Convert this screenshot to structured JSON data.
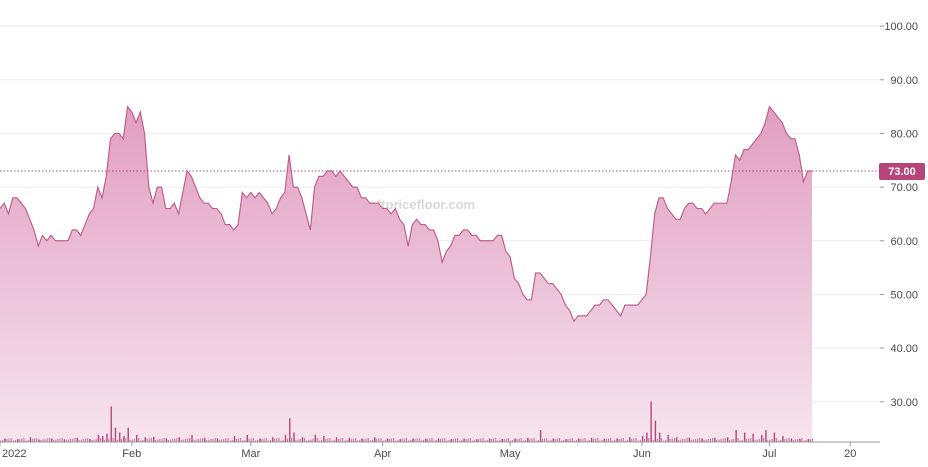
{
  "chart_data": {
    "type": "area",
    "watermark": "nftpricefloor.com",
    "colors": {
      "line": "#c0608e",
      "fill_top": "#e19ec0",
      "fill_bottom": "#f6e4ee",
      "volume": "#b8457a",
      "price_line": "#b04b7a",
      "price_tag_bg": "#b8457a",
      "grid": "#ececec"
    },
    "y_axis": {
      "position": "right",
      "range": [
        22.5,
        103
      ],
      "ticks": [
        30,
        40,
        50,
        60,
        70,
        80,
        90,
        100
      ],
      "tick_labels": [
        "30.00",
        "40.00",
        "50.00",
        "60.00",
        "70.00",
        "80.00",
        "90.00",
        "100.00"
      ]
    },
    "x_axis": {
      "range": [
        0,
        207
      ],
      "ticks": [
        {
          "x": 0,
          "label": "2022"
        },
        {
          "x": 31,
          "label": "Feb"
        },
        {
          "x": 59,
          "label": "Mar"
        },
        {
          "x": 90,
          "label": "Apr"
        },
        {
          "x": 120,
          "label": "May"
        },
        {
          "x": 151,
          "label": "Jun"
        },
        {
          "x": 181,
          "label": "Jul"
        },
        {
          "x": 200,
          "label": "20"
        }
      ]
    },
    "grid": true,
    "current_price": {
      "value": 73.0,
      "label": "73.00"
    },
    "series": [
      {
        "values_points": [
          [
            0,
            66
          ],
          [
            1,
            67
          ],
          [
            2,
            65
          ],
          [
            3,
            68
          ],
          [
            4,
            68
          ],
          [
            5,
            67
          ],
          [
            6,
            66
          ],
          [
            7,
            64
          ],
          [
            8,
            62
          ],
          [
            9,
            59
          ],
          [
            10,
            61
          ],
          [
            11,
            60
          ],
          [
            12,
            61
          ],
          [
            13,
            60
          ],
          [
            14,
            60
          ],
          [
            15,
            60
          ],
          [
            16,
            60
          ],
          [
            17,
            62
          ],
          [
            18,
            62
          ],
          [
            19,
            61
          ],
          [
            20,
            63
          ],
          [
            21,
            65
          ],
          [
            22,
            66
          ],
          [
            23,
            70
          ],
          [
            24,
            68
          ],
          [
            25,
            72
          ],
          [
            26,
            79
          ],
          [
            27,
            80
          ],
          [
            28,
            80
          ],
          [
            29,
            79
          ],
          [
            30,
            85
          ],
          [
            31,
            84
          ],
          [
            32,
            82
          ],
          [
            33,
            84
          ],
          [
            34,
            80
          ],
          [
            35,
            70
          ],
          [
            36,
            67
          ],
          [
            37,
            70
          ],
          [
            38,
            70
          ],
          [
            39,
            66
          ],
          [
            40,
            66
          ],
          [
            41,
            67
          ],
          [
            42,
            65
          ],
          [
            43,
            69
          ],
          [
            44,
            73
          ],
          [
            45,
            72
          ],
          [
            46,
            70
          ],
          [
            47,
            68
          ],
          [
            48,
            67
          ],
          [
            49,
            67
          ],
          [
            50,
            66
          ],
          [
            51,
            66
          ],
          [
            52,
            65
          ],
          [
            53,
            63
          ],
          [
            54,
            63
          ],
          [
            55,
            62
          ],
          [
            56,
            63
          ],
          [
            57,
            69
          ],
          [
            58,
            68
          ],
          [
            59,
            69
          ],
          [
            60,
            68
          ],
          [
            61,
            69
          ],
          [
            62,
            68
          ],
          [
            63,
            67
          ],
          [
            64,
            65
          ],
          [
            65,
            66
          ],
          [
            66,
            68
          ],
          [
            67,
            69
          ],
          [
            68,
            76
          ],
          [
            69,
            70
          ],
          [
            70,
            70
          ],
          [
            71,
            68
          ],
          [
            72,
            65
          ],
          [
            73,
            62
          ],
          [
            74,
            70
          ],
          [
            75,
            72
          ],
          [
            76,
            72
          ],
          [
            77,
            73
          ],
          [
            78,
            73
          ],
          [
            79,
            72
          ],
          [
            80,
            73
          ],
          [
            81,
            72
          ],
          [
            82,
            71
          ],
          [
            83,
            70
          ],
          [
            84,
            70
          ],
          [
            85,
            68
          ],
          [
            86,
            68
          ],
          [
            87,
            67
          ],
          [
            88,
            67
          ],
          [
            89,
            67
          ],
          [
            90,
            66
          ],
          [
            91,
            66
          ],
          [
            92,
            65
          ],
          [
            93,
            66
          ],
          [
            94,
            64
          ],
          [
            95,
            63
          ],
          [
            96,
            59
          ],
          [
            97,
            63
          ],
          [
            98,
            64
          ],
          [
            99,
            63
          ],
          [
            100,
            63
          ],
          [
            101,
            62
          ],
          [
            102,
            62
          ],
          [
            103,
            60
          ],
          [
            104,
            56
          ],
          [
            105,
            58
          ],
          [
            106,
            59
          ],
          [
            107,
            61
          ],
          [
            108,
            61
          ],
          [
            109,
            62
          ],
          [
            110,
            62
          ],
          [
            111,
            61
          ],
          [
            112,
            61
          ],
          [
            113,
            60
          ],
          [
            114,
            60
          ],
          [
            115,
            60
          ],
          [
            116,
            60
          ],
          [
            117,
            61
          ],
          [
            118,
            61
          ],
          [
            119,
            58
          ],
          [
            120,
            57
          ],
          [
            121,
            53
          ],
          [
            122,
            52
          ],
          [
            123,
            50
          ],
          [
            124,
            49
          ],
          [
            125,
            49
          ],
          [
            126,
            54
          ],
          [
            127,
            54
          ],
          [
            128,
            53
          ],
          [
            129,
            52
          ],
          [
            130,
            52
          ],
          [
            131,
            51
          ],
          [
            132,
            50
          ],
          [
            133,
            48
          ],
          [
            134,
            47
          ],
          [
            135,
            45
          ],
          [
            136,
            46
          ],
          [
            137,
            46
          ],
          [
            138,
            46
          ],
          [
            139,
            47
          ],
          [
            140,
            48
          ],
          [
            141,
            48
          ],
          [
            142,
            49
          ],
          [
            143,
            49
          ],
          [
            144,
            48
          ],
          [
            145,
            47
          ],
          [
            146,
            46
          ],
          [
            147,
            48
          ],
          [
            148,
            48
          ],
          [
            149,
            48
          ],
          [
            150,
            48
          ],
          [
            151,
            49
          ],
          [
            152,
            50
          ],
          [
            153,
            57
          ],
          [
            154,
            65
          ],
          [
            155,
            68
          ],
          [
            156,
            68
          ],
          [
            157,
            66
          ],
          [
            158,
            65
          ],
          [
            159,
            64
          ],
          [
            160,
            64
          ],
          [
            161,
            66
          ],
          [
            162,
            67
          ],
          [
            163,
            67
          ],
          [
            164,
            66
          ],
          [
            165,
            66
          ],
          [
            166,
            65
          ],
          [
            167,
            66
          ],
          [
            168,
            67
          ],
          [
            169,
            67
          ],
          [
            170,
            67
          ],
          [
            171,
            67
          ],
          [
            172,
            71
          ],
          [
            173,
            76
          ],
          [
            174,
            75
          ],
          [
            175,
            77
          ],
          [
            176,
            77
          ],
          [
            177,
            78
          ],
          [
            178,
            79
          ],
          [
            179,
            80
          ],
          [
            180,
            82
          ],
          [
            181,
            85
          ],
          [
            182,
            84
          ],
          [
            183,
            83
          ],
          [
            184,
            82
          ],
          [
            185,
            80
          ],
          [
            186,
            79
          ],
          [
            187,
            79
          ],
          [
            188,
            76
          ],
          [
            189,
            71
          ],
          [
            190,
            73
          ],
          [
            191,
            73
          ]
        ]
      }
    ],
    "volume_scale_max": 40,
    "volume_bars": [
      {
        "x": 1,
        "v": 1.5
      },
      {
        "x": 4,
        "v": 1.2
      },
      {
        "x": 7,
        "v": 2
      },
      {
        "x": 9,
        "v": 1.1
      },
      {
        "x": 12,
        "v": 1.5
      },
      {
        "x": 15,
        "v": 1.2
      },
      {
        "x": 18,
        "v": 1.8
      },
      {
        "x": 21,
        "v": 1.3
      },
      {
        "x": 23,
        "v": 3
      },
      {
        "x": 24,
        "v": 2.5
      },
      {
        "x": 25,
        "v": 3.5
      },
      {
        "x": 26,
        "v": 15
      },
      {
        "x": 27,
        "v": 6
      },
      {
        "x": 28,
        "v": 4
      },
      {
        "x": 29,
        "v": 2.5
      },
      {
        "x": 30,
        "v": 6
      },
      {
        "x": 32,
        "v": 3
      },
      {
        "x": 34,
        "v": 2
      },
      {
        "x": 36,
        "v": 2.2
      },
      {
        "x": 39,
        "v": 1.5
      },
      {
        "x": 42,
        "v": 2
      },
      {
        "x": 45,
        "v": 3
      },
      {
        "x": 48,
        "v": 1.8
      },
      {
        "x": 51,
        "v": 1.5
      },
      {
        "x": 55,
        "v": 2.5
      },
      {
        "x": 58,
        "v": 3
      },
      {
        "x": 61,
        "v": 1.5
      },
      {
        "x": 64,
        "v": 2
      },
      {
        "x": 67,
        "v": 3
      },
      {
        "x": 68,
        "v": 10
      },
      {
        "x": 69,
        "v": 4
      },
      {
        "x": 71,
        "v": 2
      },
      {
        "x": 74,
        "v": 3
      },
      {
        "x": 76,
        "v": 2.5
      },
      {
        "x": 79,
        "v": 2
      },
      {
        "x": 82,
        "v": 1.8
      },
      {
        "x": 85,
        "v": 1.5
      },
      {
        "x": 88,
        "v": 2
      },
      {
        "x": 91,
        "v": 1.5
      },
      {
        "x": 94,
        "v": 1.2
      },
      {
        "x": 97,
        "v": 1.5
      },
      {
        "x": 100,
        "v": 1.4
      },
      {
        "x": 103,
        "v": 1.5
      },
      {
        "x": 106,
        "v": 1.2
      },
      {
        "x": 109,
        "v": 1.5
      },
      {
        "x": 112,
        "v": 1.2
      },
      {
        "x": 115,
        "v": 1.5
      },
      {
        "x": 118,
        "v": 1.3
      },
      {
        "x": 121,
        "v": 1.5
      },
      {
        "x": 124,
        "v": 1.8
      },
      {
        "x": 127,
        "v": 5
      },
      {
        "x": 130,
        "v": 1.5
      },
      {
        "x": 133,
        "v": 1.2
      },
      {
        "x": 136,
        "v": 1.5
      },
      {
        "x": 139,
        "v": 1.8
      },
      {
        "x": 142,
        "v": 1.4
      },
      {
        "x": 145,
        "v": 1.5
      },
      {
        "x": 148,
        "v": 2
      },
      {
        "x": 151,
        "v": 2.5
      },
      {
        "x": 152,
        "v": 4
      },
      {
        "x": 153,
        "v": 17
      },
      {
        "x": 154,
        "v": 9
      },
      {
        "x": 155,
        "v": 4
      },
      {
        "x": 157,
        "v": 3
      },
      {
        "x": 159,
        "v": 2
      },
      {
        "x": 162,
        "v": 1.8
      },
      {
        "x": 165,
        "v": 1.5
      },
      {
        "x": 168,
        "v": 1.8
      },
      {
        "x": 171,
        "v": 2
      },
      {
        "x": 173,
        "v": 5
      },
      {
        "x": 175,
        "v": 4
      },
      {
        "x": 177,
        "v": 3.5
      },
      {
        "x": 179,
        "v": 3
      },
      {
        "x": 180,
        "v": 5
      },
      {
        "x": 182,
        "v": 4
      },
      {
        "x": 184,
        "v": 2.5
      },
      {
        "x": 186,
        "v": 1.5
      },
      {
        "x": 188,
        "v": 1.3
      },
      {
        "x": 190,
        "v": 1.2
      }
    ]
  }
}
